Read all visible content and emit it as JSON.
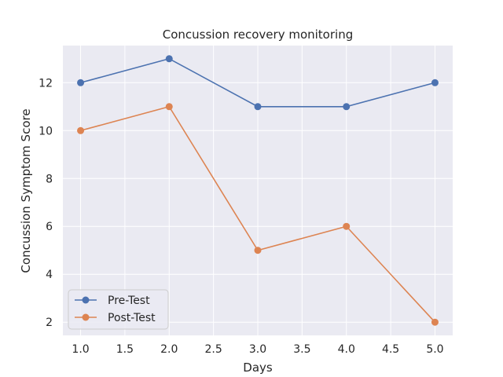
{
  "chart_data": {
    "type": "line",
    "title": "Concussion recovery monitoring",
    "xlabel": "Days",
    "ylabel": "Concussion Symptom Score",
    "x": [
      1.0,
      2.0,
      3.0,
      4.0,
      5.0
    ],
    "xlim": [
      0.8,
      5.2
    ],
    "ylim": [
      1.45,
      13.55
    ],
    "xticks": [
      1.0,
      1.5,
      2.0,
      2.5,
      3.0,
      3.5,
      4.0,
      4.5,
      5.0
    ],
    "xtick_labels": [
      "1.0",
      "1.5",
      "2.0",
      "2.5",
      "3.0",
      "3.5",
      "4.0",
      "4.5",
      "5.0"
    ],
    "yticks": [
      2,
      4,
      6,
      8,
      10,
      12
    ],
    "ytick_labels": [
      "2",
      "4",
      "6",
      "8",
      "10",
      "12"
    ],
    "grid": true,
    "legend_position": "lower-left",
    "series": [
      {
        "name": "Pre-Test",
        "values": [
          12,
          13,
          11,
          11,
          12
        ],
        "color": "#4c72b0"
      },
      {
        "name": "Post-Test",
        "values": [
          10,
          11,
          5,
          6,
          2
        ],
        "color": "#dd8452"
      }
    ],
    "plot_background": "#eaeaf2",
    "grid_color": "#ffffff"
  }
}
